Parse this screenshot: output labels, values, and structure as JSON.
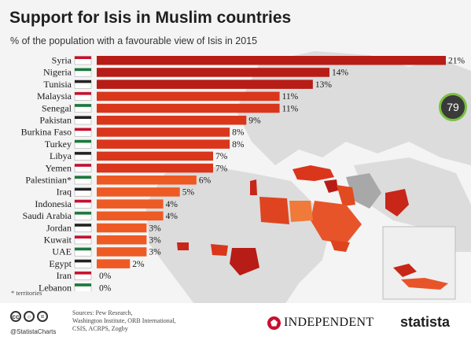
{
  "header": {
    "title": "Support for Isis in Muslim countries",
    "subtitle": "% of the population with a favourable view of Isis in 2015"
  },
  "chart_data": {
    "type": "bar",
    "orientation": "horizontal",
    "title": "Support for Isis in Muslim countries",
    "subtitle": "% of the population with a favourable view of Isis in 2015",
    "categories": [
      "Syria",
      "Nigeria",
      "Tunisia",
      "Malaysia",
      "Senegal",
      "Pakistan",
      "Burkina Faso",
      "Turkey",
      "Libya",
      "Yemen",
      "Palestinian*",
      "Iraq",
      "Indonesia",
      "Saudi Arabia",
      "Jordan",
      "Kuwait",
      "UAE",
      "Egypt",
      "Iran",
      "Lebanon"
    ],
    "values": [
      21,
      14,
      13,
      11,
      11,
      9,
      8,
      8,
      7,
      7,
      6,
      5,
      4,
      4,
      3,
      3,
      3,
      2,
      0,
      0
    ],
    "value_labels": [
      "21%",
      "14%",
      "13%",
      "11%",
      "11%",
      "9%",
      "8%",
      "8%",
      "7%",
      "7%",
      "6%",
      "5%",
      "4%",
      "4%",
      "3%",
      "3%",
      "3%",
      "2%",
      "0%",
      "0%"
    ],
    "xlim": [
      0,
      21
    ],
    "grid": false,
    "legend": "none",
    "colors": {
      "bar_dark": "#b81c16",
      "bar_mid": "#d9361c",
      "bar_light": "#ee5a24"
    }
  },
  "footnote": "* territories",
  "footer": {
    "cc_icons": [
      "cc",
      "by",
      "="
    ],
    "statista_handle": "@StatistaCharts",
    "sources_lines": [
      "Sources: Pew Research,",
      "Washington Institute, ORB International,",
      "CSIS, ACRPS, Zogby"
    ],
    "independent": "INDEPENDENT",
    "statista": "statista"
  },
  "badge": {
    "value": "79",
    "color": "#7bc043"
  }
}
